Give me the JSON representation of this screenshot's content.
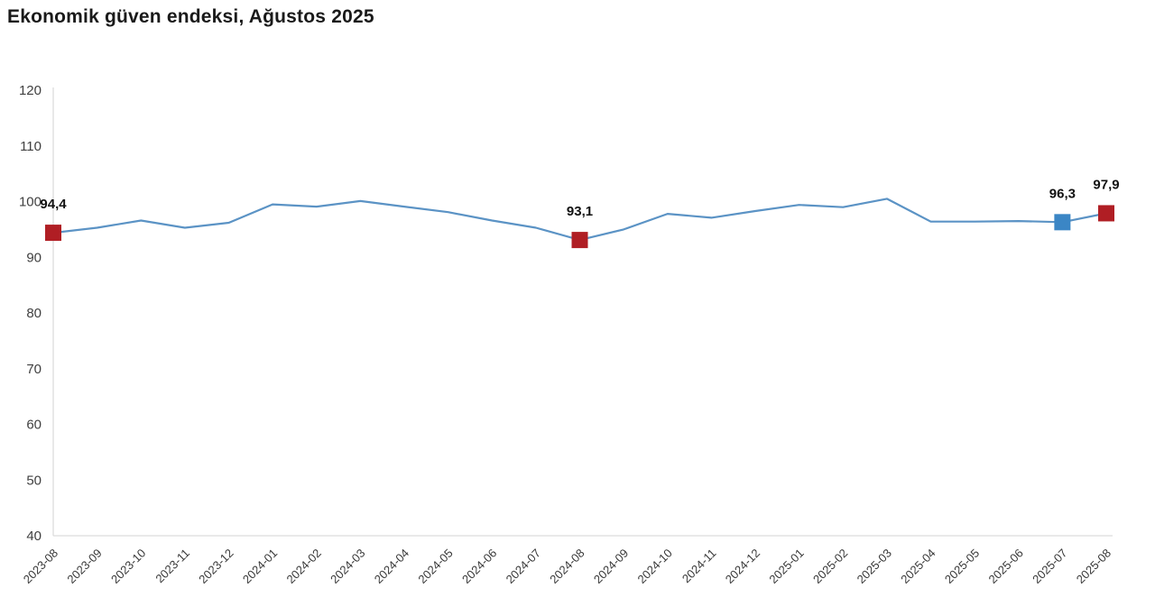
{
  "title": "Ekonomik güven endeksi, Ağustos 2025",
  "chart_data": {
    "type": "line",
    "title": "Ekonomik güven endeksi, Ağustos 2025",
    "xlabel": "",
    "ylabel": "",
    "x": [
      "2023-08",
      "2023-09",
      "2023-10",
      "2023-11",
      "2023-12",
      "2024-01",
      "2024-02",
      "2024-03",
      "2024-04",
      "2024-05",
      "2024-06",
      "2024-07",
      "2024-08",
      "2024-09",
      "2024-10",
      "2024-11",
      "2024-12",
      "2025-01",
      "2025-02",
      "2025-03",
      "2025-04",
      "2025-05",
      "2025-06",
      "2025-07",
      "2025-08"
    ],
    "values": [
      94.4,
      95.3,
      96.6,
      95.3,
      96.2,
      99.5,
      99.1,
      100.1,
      99.1,
      98.1,
      96.6,
      95.3,
      93.1,
      95.0,
      97.8,
      97.1,
      98.3,
      99.4,
      99.0,
      100.5,
      96.4,
      96.4,
      96.5,
      96.3,
      97.9
    ],
    "ylim": [
      40,
      120
    ],
    "yticks": [
      120,
      110,
      100,
      90,
      80,
      70,
      60,
      50,
      40
    ],
    "grid": false,
    "legend": false,
    "line_color": "#5b93c5",
    "axis_color": "#dcdcdc",
    "ytick_color": "#404040",
    "xtick_color": "#383838",
    "label_color": "#111111",
    "highlighted_points": [
      {
        "x": "2023-08",
        "index": 0,
        "value": 94.4,
        "label": "94,4",
        "marker_color": "#b01e24"
      },
      {
        "x": "2024-08",
        "index": 12,
        "value": 93.1,
        "label": "93,1",
        "marker_color": "#b01e24"
      },
      {
        "x": "2025-07",
        "index": 23,
        "value": 96.3,
        "label": "96,3",
        "marker_color": "#3b86c5"
      },
      {
        "x": "2025-08",
        "index": 24,
        "value": 97.9,
        "label": "97,9",
        "marker_color": "#b01e24"
      }
    ]
  }
}
